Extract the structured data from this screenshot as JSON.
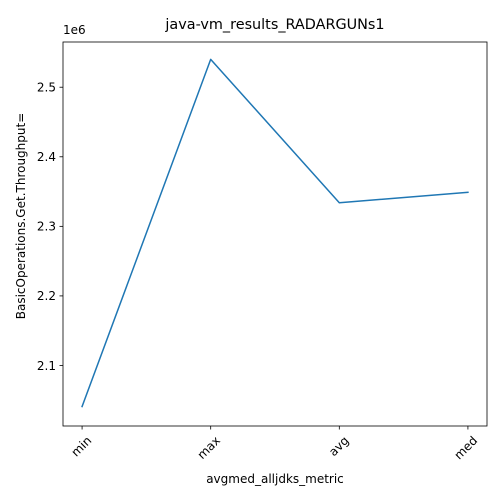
{
  "chart_data": {
    "type": "line",
    "title": "java-vm_results_RADARGUNs1",
    "xlabel": "avgmed_alljdks_metric",
    "ylabel": "BasicOperations.Get.Throughput=",
    "y_offset_label": "1e6",
    "categories": [
      "min",
      "max",
      "avg",
      "med"
    ],
    "series": [
      {
        "values": [
          2041000,
          2540000,
          2334000,
          2349000
        ],
        "color": "#1f77b4"
      }
    ],
    "ylim": [
      2013000,
      2565000
    ],
    "y_ticks": [
      2.1,
      2.2,
      2.3,
      2.4,
      2.5
    ],
    "y_tick_labels": [
      "2.1",
      "2.2",
      "2.3",
      "2.4",
      "2.5"
    ],
    "x_tick_rotation_deg": 45,
    "grid": false,
    "legend": "none"
  }
}
